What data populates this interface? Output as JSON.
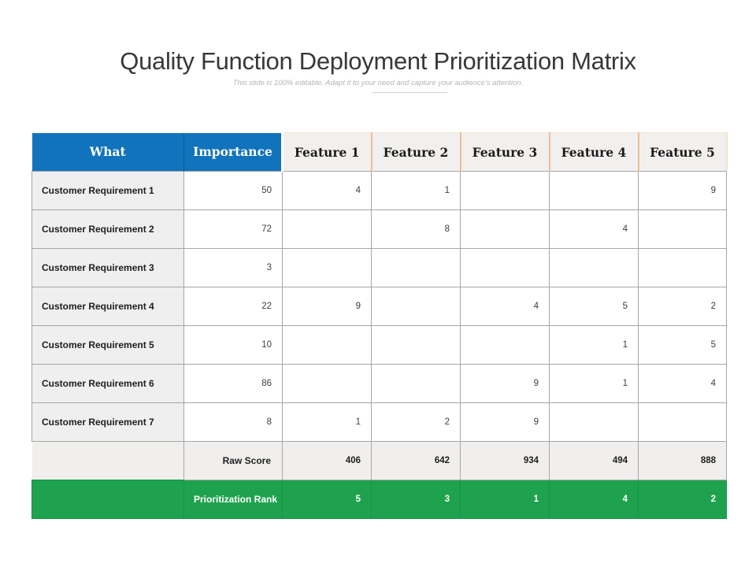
{
  "slide": {
    "title": "Quality Function Deployment Prioritization Matrix",
    "subtitle": "This slide is 100% editable. Adapt it to your need and capture your audience's attention."
  },
  "table": {
    "header": {
      "what": "What",
      "importance": "Importance",
      "features": [
        "Feature 1",
        "Feature 2",
        "Feature 3",
        "Feature 4",
        "Feature 5"
      ]
    },
    "rows": [
      {
        "label": "Customer Requirement 1",
        "importance": "50",
        "values": [
          "4",
          "1",
          "",
          "",
          "9"
        ]
      },
      {
        "label": "Customer Requirement 2",
        "importance": "72",
        "values": [
          "",
          "8",
          "",
          "4",
          ""
        ]
      },
      {
        "label": "Customer Requirement 3",
        "importance": "3",
        "values": [
          "",
          "",
          "",
          "",
          ""
        ]
      },
      {
        "label": "Customer Requirement 4",
        "importance": "22",
        "values": [
          "9",
          "",
          "4",
          "5",
          "2"
        ]
      },
      {
        "label": "Customer Requirement 5",
        "importance": "10",
        "values": [
          "",
          "",
          "",
          "1",
          "5"
        ]
      },
      {
        "label": "Customer Requirement 6",
        "importance": "86",
        "values": [
          "",
          "",
          "9",
          "1",
          "4"
        ]
      },
      {
        "label": "Customer Requirement 7",
        "importance": "8",
        "values": [
          "1",
          "2",
          "9",
          "",
          ""
        ]
      }
    ],
    "raw_score": {
      "label": "Raw Score",
      "values": [
        "406",
        "642",
        "934",
        "494",
        "888"
      ]
    },
    "rank": {
      "label": "Prioritization Rank",
      "values": [
        "5",
        "3",
        "1",
        "4",
        "2"
      ]
    }
  },
  "colors": {
    "header_blue": "#1173BC",
    "rank_green": "#1FA24E",
    "feature_border_orange": "#EBBE94",
    "grid_gray": "#A6A6A6"
  }
}
